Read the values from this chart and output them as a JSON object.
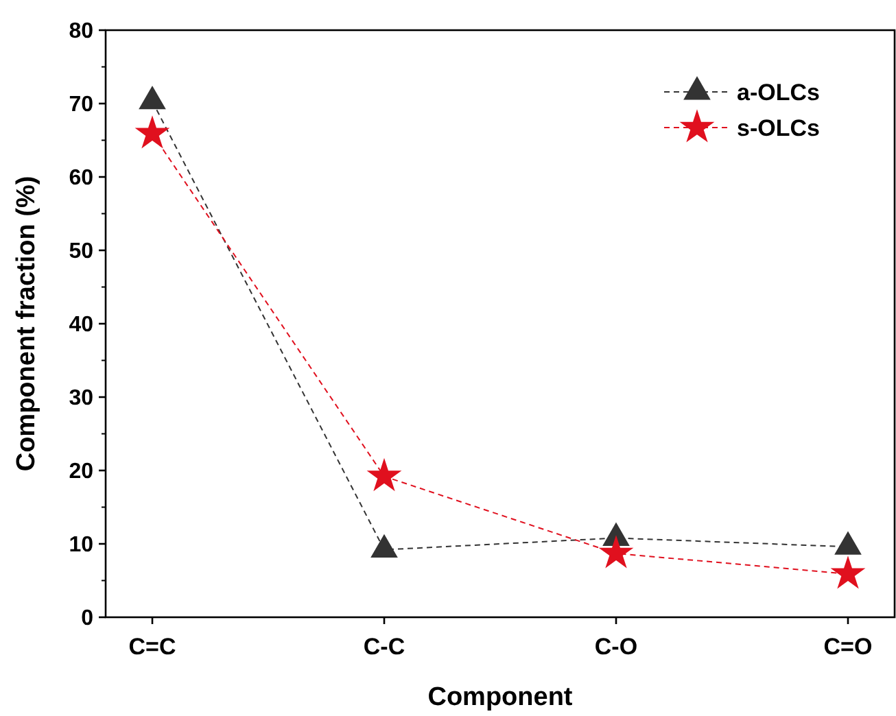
{
  "chart_data": {
    "type": "line",
    "xlabel": "Component",
    "ylabel": "Component fraction (%)",
    "categories": [
      "C=C",
      "C-C",
      "C-O",
      "C=O"
    ],
    "series": [
      {
        "name": "a-OLCs",
        "color": "#333333",
        "values": [
          70.3,
          9.2,
          10.8,
          9.6
        ],
        "marker": "triangle"
      },
      {
        "name": "s-OLCs",
        "color": "#e0101e",
        "values": [
          65.9,
          19.2,
          8.7,
          5.9
        ],
        "marker": "star"
      }
    ],
    "ylim": [
      0,
      80
    ],
    "yticks": [
      0,
      10,
      20,
      30,
      40,
      50,
      60,
      70,
      80
    ],
    "line_style": "dashed",
    "legend": "top right",
    "grid": false
  }
}
